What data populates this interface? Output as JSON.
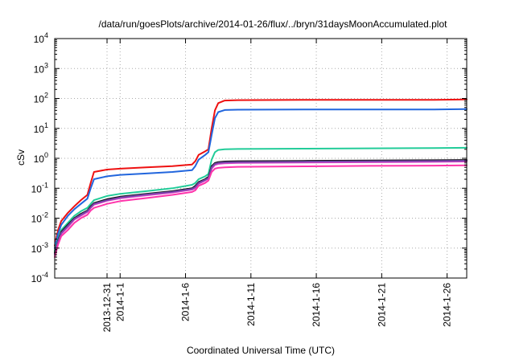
{
  "chart_data": {
    "type": "line",
    "title": "/data/run/goesPlots/archive/2014-01-26/flux/../bryn/31daysMoonAccumulated.plot",
    "xlabel": "Coordinated Universal Time (UTC)",
    "ylabel": "cSv",
    "yscale": "log",
    "ylim": [
      0.0001,
      10000
    ],
    "xlim": [
      "2013-12-27",
      "2014-01-27 12:00"
    ],
    "grid": true,
    "legend": "none",
    "yticks": [
      {
        "value": 0.0001,
        "base": "10",
        "exp": "-4"
      },
      {
        "value": 0.001,
        "base": "10",
        "exp": "-3"
      },
      {
        "value": 0.01,
        "base": "10",
        "exp": "-2"
      },
      {
        "value": 0.1,
        "base": "10",
        "exp": "-1"
      },
      {
        "value": 1,
        "base": "10",
        "exp": "0"
      },
      {
        "value": 10,
        "base": "10",
        "exp": "1"
      },
      {
        "value": 100,
        "base": "10",
        "exp": "2"
      },
      {
        "value": 1000,
        "base": "10",
        "exp": "3"
      },
      {
        "value": 10000,
        "base": "10",
        "exp": "4"
      }
    ],
    "xticks": [
      {
        "value": "2013-12-31",
        "label": "2013-12-31"
      },
      {
        "value": "2014-01-01",
        "label": "2014-1-1"
      },
      {
        "value": "2014-01-06",
        "label": "2014-1-6"
      },
      {
        "value": "2014-01-11",
        "label": "2014-1-11"
      },
      {
        "value": "2014-01-16",
        "label": "2014-1-16"
      },
      {
        "value": "2014-01-21",
        "label": "2014-1-21"
      },
      {
        "value": "2014-01-26",
        "label": "2014-1-26"
      }
    ],
    "series": [
      {
        "color": "#ee1111",
        "x": [
          "2013-12-27 00:00",
          "2013-12-27 06:00",
          "2013-12-27 12:00",
          "2013-12-28 00:00",
          "2013-12-28 12:00",
          "2013-12-29 00:00",
          "2013-12-29 12:00",
          "2013-12-29 18:00",
          "2013-12-30 00:00",
          "2013-12-31 00:00",
          "2014-01-01 00:00",
          "2014-01-03 00:00",
          "2014-01-05 00:00",
          "2014-01-06 12:00",
          "2014-01-06 18:00",
          "2014-01-07 00:00",
          "2014-01-07 12:00",
          "2014-01-07 18:00",
          "2014-01-08 00:00",
          "2014-01-08 06:00",
          "2014-01-08 12:00",
          "2014-01-09 00:00",
          "2014-01-10 00:00",
          "2014-01-15 00:00",
          "2014-01-20 00:00",
          "2014-01-25 00:00",
          "2014-01-27 12:00"
        ],
        "y": [
          0.0012,
          0.004,
          0.008,
          0.015,
          0.025,
          0.04,
          0.06,
          0.15,
          0.35,
          0.42,
          0.45,
          0.5,
          0.55,
          0.62,
          0.8,
          1.3,
          1.7,
          2.0,
          10,
          40,
          70,
          85,
          88,
          90,
          90,
          90,
          92
        ]
      },
      {
        "color": "#2266dd",
        "x": [
          "2013-12-27 00:00",
          "2013-12-27 06:00",
          "2013-12-27 12:00",
          "2013-12-28 00:00",
          "2013-12-28 12:00",
          "2013-12-29 00:00",
          "2013-12-29 12:00",
          "2013-12-29 18:00",
          "2013-12-30 00:00",
          "2013-12-31 00:00",
          "2014-01-01 00:00",
          "2014-01-03 00:00",
          "2014-01-05 00:00",
          "2014-01-06 12:00",
          "2014-01-06 18:00",
          "2014-01-07 00:00",
          "2014-01-07 12:00",
          "2014-01-07 18:00",
          "2014-01-08 00:00",
          "2014-01-08 06:00",
          "2014-01-08 12:00",
          "2014-01-09 00:00",
          "2014-01-10 00:00",
          "2014-01-15 00:00",
          "2014-01-20 00:00",
          "2014-01-25 00:00",
          "2014-01-27 12:00"
        ],
        "y": [
          0.001,
          0.003,
          0.006,
          0.012,
          0.02,
          0.03,
          0.045,
          0.1,
          0.2,
          0.25,
          0.28,
          0.31,
          0.35,
          0.4,
          0.55,
          0.9,
          1.3,
          1.6,
          6,
          22,
          35,
          41,
          42,
          43,
          43,
          43,
          44
        ]
      },
      {
        "color": "#22cc99",
        "x": [
          "2013-12-27 00:00",
          "2013-12-27 06:00",
          "2013-12-27 12:00",
          "2013-12-28 00:00",
          "2013-12-28 12:00",
          "2013-12-29 00:00",
          "2013-12-29 12:00",
          "2013-12-29 18:00",
          "2013-12-30 00:00",
          "2013-12-31 00:00",
          "2014-01-01 00:00",
          "2014-01-03 00:00",
          "2014-01-05 00:00",
          "2014-01-06 12:00",
          "2014-01-06 18:00",
          "2014-01-07 00:00",
          "2014-01-07 12:00",
          "2014-01-07 18:00",
          "2014-01-08 00:00",
          "2014-01-08 06:00",
          "2014-01-08 12:00",
          "2014-01-09 00:00",
          "2014-01-10 00:00",
          "2014-01-15 00:00",
          "2014-01-20 00:00",
          "2014-01-25 00:00",
          "2014-01-27 12:00"
        ],
        "y": [
          0.0008,
          0.002,
          0.004,
          0.007,
          0.012,
          0.017,
          0.022,
          0.03,
          0.04,
          0.055,
          0.065,
          0.08,
          0.1,
          0.13,
          0.15,
          0.2,
          0.25,
          0.3,
          0.9,
          1.6,
          1.9,
          2.0,
          2.05,
          2.1,
          2.15,
          2.2,
          2.25
        ]
      },
      {
        "color": "#111111",
        "x": [
          "2013-12-27 00:00",
          "2013-12-27 06:00",
          "2013-12-27 12:00",
          "2013-12-28 00:00",
          "2013-12-28 12:00",
          "2013-12-29 00:00",
          "2013-12-29 12:00",
          "2013-12-29 18:00",
          "2013-12-30 00:00",
          "2013-12-31 00:00",
          "2014-01-01 00:00",
          "2014-01-03 00:00",
          "2014-01-05 00:00",
          "2014-01-06 12:00",
          "2014-01-06 18:00",
          "2014-01-07 00:00",
          "2014-01-07 12:00",
          "2014-01-07 18:00",
          "2014-01-08 00:00",
          "2014-01-08 06:00",
          "2014-01-08 12:00",
          "2014-01-09 00:00",
          "2014-01-10 00:00",
          "2014-01-15 00:00",
          "2014-01-20 00:00",
          "2014-01-25 00:00",
          "2014-01-27 12:00"
        ],
        "y": [
          0.0007,
          0.0018,
          0.0035,
          0.006,
          0.01,
          0.014,
          0.018,
          0.025,
          0.032,
          0.043,
          0.052,
          0.065,
          0.08,
          0.1,
          0.12,
          0.16,
          0.2,
          0.24,
          0.55,
          0.7,
          0.75,
          0.78,
          0.8,
          0.82,
          0.84,
          0.86,
          0.88
        ]
      },
      {
        "color": "#dd44cc",
        "x": [
          "2013-12-27 00:00",
          "2013-12-27 06:00",
          "2013-12-27 12:00",
          "2013-12-28 00:00",
          "2013-12-28 12:00",
          "2013-12-29 00:00",
          "2013-12-29 12:00",
          "2013-12-29 18:00",
          "2013-12-30 00:00",
          "2013-12-31 00:00",
          "2014-01-01 00:00",
          "2014-01-03 00:00",
          "2014-01-05 00:00",
          "2014-01-06 12:00",
          "2014-01-06 18:00",
          "2014-01-07 00:00",
          "2014-01-07 12:00",
          "2014-01-07 18:00",
          "2014-01-08 00:00",
          "2014-01-08 06:00",
          "2014-01-08 12:00",
          "2014-01-09 00:00",
          "2014-01-10 00:00",
          "2014-01-15 00:00",
          "2014-01-20 00:00",
          "2014-01-25 00:00",
          "2014-01-27 12:00"
        ],
        "y": [
          0.0006,
          0.0016,
          0.003,
          0.005,
          0.009,
          0.012,
          0.016,
          0.022,
          0.028,
          0.038,
          0.046,
          0.058,
          0.072,
          0.09,
          0.1,
          0.14,
          0.18,
          0.21,
          0.45,
          0.6,
          0.65,
          0.68,
          0.7,
          0.72,
          0.74,
          0.76,
          0.78
        ]
      },
      {
        "color": "#7744aa",
        "x": [
          "2013-12-27 00:00",
          "2013-12-27 06:00",
          "2013-12-27 12:00",
          "2013-12-28 00:00",
          "2013-12-28 12:00",
          "2013-12-29 00:00",
          "2013-12-29 12:00",
          "2013-12-29 18:00",
          "2013-12-30 00:00",
          "2013-12-31 00:00",
          "2014-01-01 00:00",
          "2014-01-03 00:00",
          "2014-01-05 00:00",
          "2014-01-06 12:00",
          "2014-01-06 18:00",
          "2014-01-07 00:00",
          "2014-01-07 12:00",
          "2014-01-07 18:00",
          "2014-01-08 00:00",
          "2014-01-08 06:00",
          "2014-01-08 12:00",
          "2014-01-09 00:00",
          "2014-01-10 00:00",
          "2014-01-15 00:00",
          "2014-01-20 00:00",
          "2014-01-25 00:00",
          "2014-01-27 12:00"
        ],
        "y": [
          0.00065,
          0.0017,
          0.0032,
          0.0055,
          0.0095,
          0.013,
          0.017,
          0.023,
          0.03,
          0.04,
          0.049,
          0.062,
          0.076,
          0.095,
          0.11,
          0.15,
          0.19,
          0.22,
          0.5,
          0.65,
          0.7,
          0.73,
          0.75,
          0.77,
          0.79,
          0.81,
          0.83
        ]
      },
      {
        "color": "#ff33aa",
        "x": [
          "2013-12-27 00:00",
          "2013-12-27 06:00",
          "2013-12-27 12:00",
          "2013-12-28 00:00",
          "2013-12-28 12:00",
          "2013-12-29 00:00",
          "2013-12-29 12:00",
          "2013-12-29 18:00",
          "2013-12-30 00:00",
          "2013-12-31 00:00",
          "2014-01-01 00:00",
          "2014-01-03 00:00",
          "2014-01-05 00:00",
          "2014-01-06 12:00",
          "2014-01-06 18:00",
          "2014-01-07 00:00",
          "2014-01-07 12:00",
          "2014-01-07 18:00",
          "2014-01-08 00:00",
          "2014-01-08 06:00",
          "2014-01-08 12:00",
          "2014-01-09 00:00",
          "2014-01-10 00:00",
          "2014-01-15 00:00",
          "2014-01-20 00:00",
          "2014-01-25 00:00",
          "2014-01-27 12:00"
        ],
        "y": [
          0.0005,
          0.0013,
          0.0025,
          0.004,
          0.007,
          0.01,
          0.013,
          0.018,
          0.022,
          0.03,
          0.037,
          0.047,
          0.06,
          0.075,
          0.085,
          0.12,
          0.15,
          0.18,
          0.35,
          0.45,
          0.48,
          0.5,
          0.52,
          0.54,
          0.56,
          0.57,
          0.58
        ]
      }
    ]
  }
}
